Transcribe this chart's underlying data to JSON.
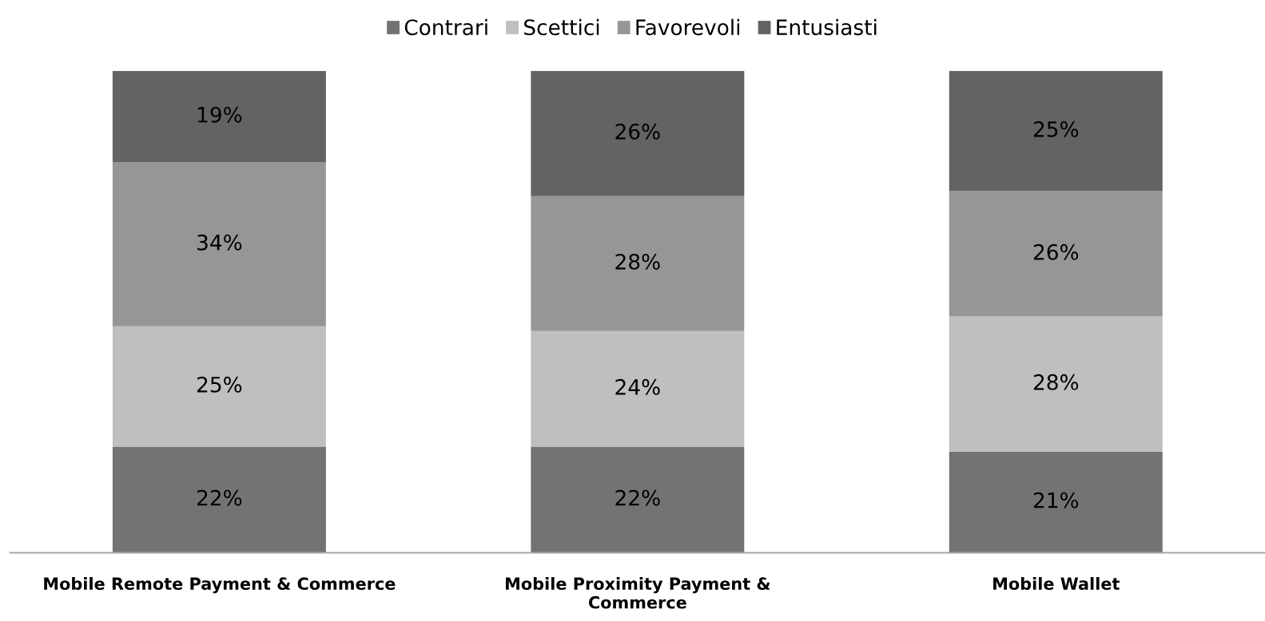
{
  "chart_data": {
    "type": "bar",
    "stacked": true,
    "legend": "top",
    "grid": false,
    "categories": [
      "Mobile Remote Payment & Commerce",
      "Mobile Proximity Payment &\nCommerce",
      "Mobile Wallet"
    ],
    "series": [
      {
        "name": "Contrari",
        "color": "#737373",
        "values": [
          22,
          22,
          21
        ],
        "value_labels": [
          "22%",
          "22%",
          "21%"
        ]
      },
      {
        "name": "Scettici",
        "color": "#bfbfbf",
        "values": [
          25,
          24,
          28
        ],
        "value_labels": [
          "25%",
          "24%",
          "28%"
        ]
      },
      {
        "name": "Favorevoli",
        "color": "#969696",
        "values": [
          34,
          28,
          26
        ],
        "value_labels": [
          "34%",
          "28%",
          "26%"
        ]
      },
      {
        "name": "Entusiasti",
        "color": "#636363",
        "values": [
          19,
          26,
          25
        ],
        "value_labels": [
          "19%",
          "26%",
          "25%"
        ]
      }
    ]
  }
}
